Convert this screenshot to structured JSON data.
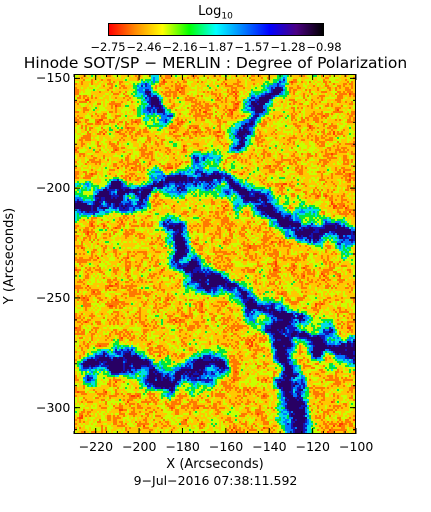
{
  "colorbar": {
    "label_main": "Log",
    "label_sub": "10",
    "ticks": [
      "−2.75",
      "−2.46",
      "−2.16",
      "−1.87",
      "−1.57",
      "−1.28",
      "−0.98"
    ],
    "colors": [
      "#ff0000",
      "#ff8c00",
      "#ffff00",
      "#00ff00",
      "#00ffff",
      "#0080ff",
      "#0000ff",
      "#4b0082",
      "#000000"
    ]
  },
  "chart_data": {
    "type": "heatmap",
    "title": "Hinode SOT/SP − MERLIN : Degree of Polarization",
    "xlabel": "X (Arcseconds)",
    "ylabel": "Y (Arcseconds)",
    "xlim": [
      -230,
      -100
    ],
    "ylim": [
      -312,
      -148
    ],
    "x_ticks": [
      -220,
      -200,
      -180,
      -160,
      -140,
      -120,
      -100
    ],
    "y_ticks": [
      -150,
      -200,
      -250,
      -300
    ],
    "x_tick_labels": [
      "−220",
      "−200",
      "−180",
      "−160",
      "−140",
      "−120",
      "−100"
    ],
    "y_tick_labels": [
      "−150",
      "−200",
      "−250",
      "−300"
    ],
    "color_scale": "Log10",
    "color_range": [
      -2.75,
      -0.98
    ],
    "timestamp": "9−Jul−2016 07:38:11.592"
  }
}
